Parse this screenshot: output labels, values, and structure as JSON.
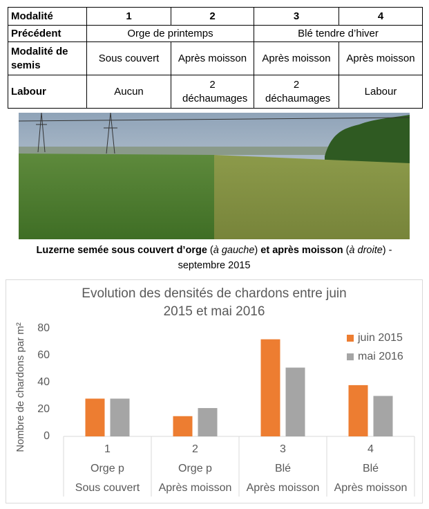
{
  "table": {
    "rows": [
      [
        "Modalité",
        "1",
        "2",
        "3",
        "4"
      ],
      [
        "Précédent",
        "Orge de printemps",
        "Blé tendre d’hiver"
      ],
      [
        "Modalité de semis",
        "Sous couvert",
        "Après moisson",
        "Après moisson",
        "Après moisson"
      ],
      [
        "Labour",
        "Aucun",
        "2 déchaumages",
        "2 déchaumages",
        "Labour"
      ]
    ]
  },
  "caption": {
    "parts": [
      "Luzerne semée sous couvert d’orge",
      " (",
      "à gauche",
      ")",
      " et après moisson",
      " (",
      "à droite",
      ") -"
    ],
    "line2": "septembre 2015"
  },
  "chart_data": {
    "type": "bar",
    "title": [
      "Evolution des densités de chardons entre juin",
      "2015 et mai 2016"
    ],
    "y_label": "Nombre de chardons par m²",
    "categories": [
      [
        "1",
        "Orge p",
        "Sous couvert"
      ],
      [
        "2",
        "Orge p",
        "Après moisson"
      ],
      [
        "3",
        "Blé",
        "Après moisson"
      ],
      [
        "4",
        "Blé",
        "Après moisson"
      ]
    ],
    "series": [
      {
        "name": "juin 2015",
        "color": "#ed7d31",
        "values": [
          28,
          15,
          72,
          38
        ]
      },
      {
        "name": "mai 2016",
        "color": "#a5a5a5",
        "values": [
          28,
          21,
          51,
          30
        ]
      }
    ],
    "ylim": [
      0,
      80
    ],
    "yticks": [
      0,
      20,
      40,
      60,
      80
    ],
    "grid": false,
    "legend": "top-right"
  }
}
